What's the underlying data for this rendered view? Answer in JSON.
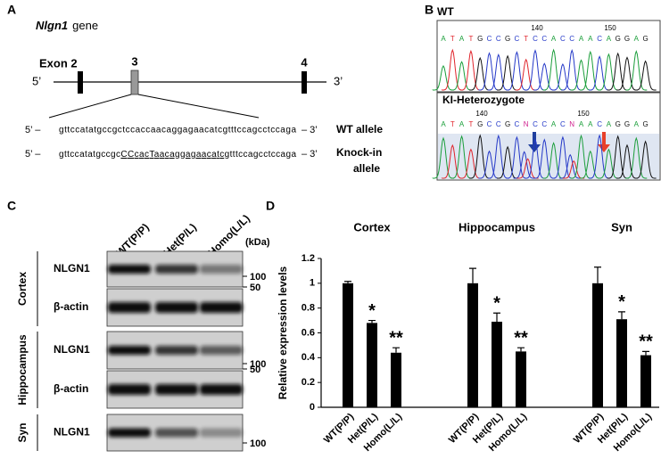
{
  "panel_a": {
    "label": "A",
    "gene_name": "Nlgn1",
    "gene_word": "gene",
    "exon_labels": [
      "Exon 2",
      "3",
      "4"
    ],
    "five_prime": "5’",
    "three_prime": "3’",
    "wt": {
      "start": "5’ –",
      "sequence": "gttccatatgccgctccaccaacaggagaacatcgtttccagcctccaga",
      "end": "– 3’",
      "name": "WT allele"
    },
    "ki": {
      "start": "5’ –",
      "sequence_parts": [
        "gttccatatgccgc",
        "CCcacTaacaggagaacatc",
        "gtttccagcctccaga"
      ],
      "end": "– 3’",
      "name_lines": [
        "Knock-in",
        "allele"
      ]
    }
  },
  "panel_b": {
    "label": "B",
    "traces": [
      {
        "name": "WT",
        "bases": [
          "A",
          "T",
          "A",
          "T",
          "G",
          "C",
          "C",
          "G",
          "C",
          "T",
          "C",
          "C",
          "A",
          "C",
          "C",
          "A",
          "A",
          "C",
          "A",
          "G",
          "G",
          "A",
          "G"
        ],
        "positions": [
          140,
          150
        ]
      },
      {
        "name": "KI-Heterozygote",
        "bases": [
          "A",
          "T",
          "A",
          "T",
          "G",
          "C",
          "C",
          "G",
          "C",
          "N",
          "C",
          "C",
          "A",
          "C",
          "N",
          "A",
          "A",
          "C",
          "A",
          "G",
          "G",
          "A",
          "G"
        ],
        "positions": [
          140,
          150
        ]
      }
    ]
  },
  "panel_c": {
    "label": "C",
    "lanes": [
      "WT(P/P)",
      "Het(P/L)",
      "Homo(L/L)"
    ],
    "unit": "(kDa)",
    "regions": [
      {
        "name": "Cortex",
        "blots": [
          {
            "protein": "NLGN1",
            "marker": 100
          },
          {
            "protein": "β-actin",
            "marker": 50
          }
        ]
      },
      {
        "name": "Hippocampus",
        "blots": [
          {
            "protein": "NLGN1",
            "marker": 100
          },
          {
            "protein": "β-actin",
            "marker": 50
          }
        ]
      },
      {
        "name": "Syn",
        "blots": [
          {
            "protein": "NLGN1",
            "marker": 100
          }
        ]
      }
    ]
  },
  "chart_data": {
    "type": "bar",
    "label": "D",
    "y_label": "Relative expression levels",
    "categories": [
      "WT(P/P)",
      "Het(P/L)",
      "Homo(L/L)"
    ],
    "series": [
      {
        "name": "Cortex",
        "color": "#000000",
        "values": [
          1,
          0.68,
          0.44
        ],
        "errors": [
          0.015,
          0.02,
          0.04
        ],
        "annotations": [
          null,
          "*",
          "**"
        ]
      },
      {
        "name": "Hippocampus",
        "color": "#000000",
        "values": [
          1,
          0.69,
          0.45
        ],
        "errors": [
          0.12,
          0.07,
          0.03
        ],
        "annotations": [
          null,
          "*",
          "**"
        ]
      },
      {
        "name": "Syn",
        "color": "#000000",
        "values": [
          1,
          0.71,
          0.42
        ],
        "errors": [
          0.13,
          0.06,
          0.03
        ],
        "annotations": [
          null,
          "*",
          "**"
        ]
      }
    ],
    "ylim": [
      0,
      1.2
    ],
    "yticks": [
      0,
      0.2,
      0.4,
      0.6,
      0.8,
      1,
      1.2
    ]
  }
}
